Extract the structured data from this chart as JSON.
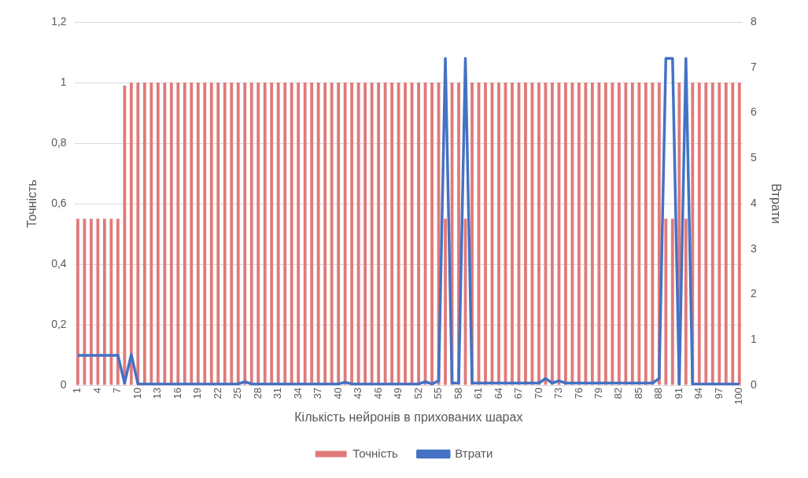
{
  "chart_data": {
    "type": "bar",
    "xlabel": "Кількість нейронів в прихованих шарах",
    "ylabel": "Точність",
    "y2label": "Втрати",
    "categories": [
      "1",
      null,
      null,
      "4",
      null,
      null,
      "7",
      null,
      null,
      "10",
      null,
      null,
      "13",
      null,
      null,
      "16",
      null,
      null,
      "19",
      null,
      null,
      "22",
      null,
      null,
      "25",
      null,
      null,
      "28",
      null,
      null,
      "31",
      null,
      null,
      "34",
      null,
      null,
      "37",
      null,
      null,
      "40",
      null,
      null,
      "43",
      null,
      null,
      "46",
      null,
      null,
      "49",
      null,
      null,
      "52",
      null,
      null,
      "55",
      null,
      null,
      "58",
      null,
      null,
      "61",
      null,
      null,
      "64",
      null,
      null,
      "67",
      null,
      null,
      "70",
      null,
      null,
      "73",
      null,
      null,
      "76",
      null,
      null,
      "79",
      null,
      null,
      "82",
      null,
      null,
      "85",
      null,
      null,
      "88",
      null,
      null,
      "91",
      null,
      null,
      "94",
      null,
      null,
      "97",
      null,
      null,
      "100"
    ],
    "series": [
      {
        "name": "Точність",
        "color": "#e07a7a",
        "values": [
          0.55,
          0.55,
          0.55,
          0.55,
          0.55,
          0.55,
          0.55,
          0.99,
          1,
          1,
          1,
          1,
          1,
          1,
          1,
          1,
          1,
          1,
          1,
          1,
          1,
          1,
          1,
          1,
          1,
          1,
          1,
          1,
          1,
          1,
          1,
          1,
          1,
          1,
          1,
          1,
          1,
          1,
          1,
          1,
          1,
          1,
          1,
          1,
          1,
          1,
          1,
          1,
          1,
          1,
          1,
          1,
          1,
          1,
          1,
          0.55,
          1,
          1,
          0.55,
          1,
          1,
          1,
          1,
          1,
          1,
          1,
          1,
          1,
          1,
          1,
          1,
          1,
          1,
          1,
          1,
          1,
          1,
          1,
          1,
          1,
          1,
          1,
          1,
          1,
          1,
          1,
          1,
          1,
          0.55,
          0.55,
          1,
          0.55,
          1,
          1,
          1,
          1,
          1,
          1,
          1,
          1
        ]
      },
      {
        "name": "Втрати",
        "type": "line",
        "axis": "y2",
        "color": "#4472c4",
        "values": [
          0.66,
          0.66,
          0.66,
          0.66,
          0.66,
          0.66,
          0.66,
          0.05,
          0.68,
          0.03,
          0.03,
          0.03,
          0.03,
          0.03,
          0.03,
          0.03,
          0.03,
          0.03,
          0.03,
          0.03,
          0.03,
          0.03,
          0.03,
          0.03,
          0.03,
          0.08,
          0.03,
          0.03,
          0.03,
          0.03,
          0.03,
          0.03,
          0.03,
          0.03,
          0.03,
          0.03,
          0.03,
          0.03,
          0.03,
          0.03,
          0.07,
          0.03,
          0.03,
          0.03,
          0.03,
          0.03,
          0.03,
          0.03,
          0.03,
          0.03,
          0.03,
          0.03,
          0.08,
          0.03,
          0.1,
          7.2,
          0.05,
          0.05,
          7.2,
          0.05,
          0.05,
          0.05,
          0.05,
          0.05,
          0.05,
          0.05,
          0.05,
          0.05,
          0.05,
          0.05,
          0.15,
          0.05,
          0.1,
          0.05,
          0.05,
          0.05,
          0.05,
          0.05,
          0.05,
          0.05,
          0.05,
          0.05,
          0.05,
          0.05,
          0.05,
          0.05,
          0.05,
          0.15,
          7.2,
          7.2,
          0,
          7.2,
          0.03,
          0.03,
          0.03,
          0.03,
          0.03,
          0.03,
          0.03,
          0.03
        ]
      }
    ],
    "ylim": [
      0,
      1.2
    ],
    "yticks": [
      0,
      {
        "value": 0.2,
        "label": "0,2"
      },
      {
        "value": 0.4,
        "label": "0,4"
      },
      {
        "value": 0.6,
        "label": "0,6"
      },
      {
        "value": 0.8,
        "label": "0,8"
      },
      1,
      {
        "value": 1.2,
        "label": "1,2"
      }
    ],
    "y2lim": [
      0,
      8
    ],
    "y2ticks": [
      0,
      1,
      2,
      3,
      4,
      5,
      6,
      7,
      8
    ],
    "grid": "y",
    "legend": "bottom"
  }
}
